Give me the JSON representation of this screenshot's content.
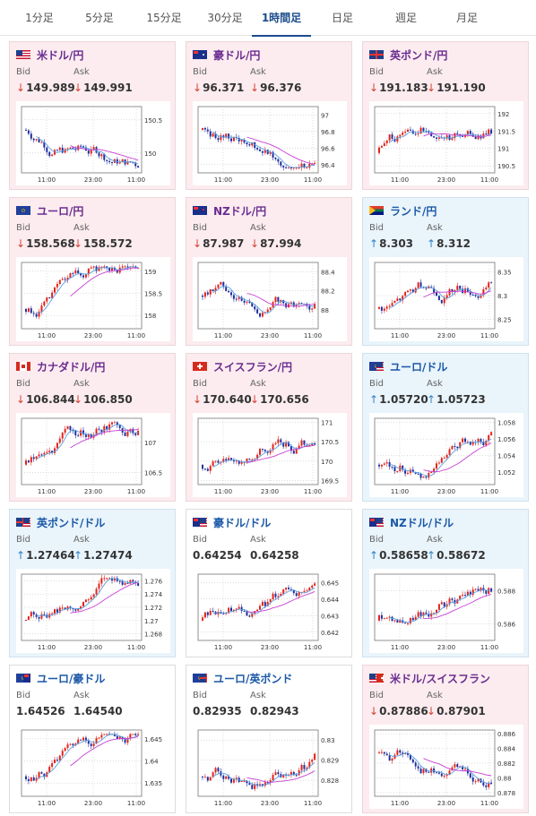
{
  "tabs": [
    {
      "label": "1分足",
      "active": false
    },
    {
      "label": "5分足",
      "active": false
    },
    {
      "label": "15分足",
      "active": false
    },
    {
      "label": "30分足",
      "active": false
    },
    {
      "label": "1時間足",
      "active": true
    },
    {
      "label": "日足",
      "active": false
    },
    {
      "label": "週足",
      "active": false
    },
    {
      "label": "月足",
      "active": false
    }
  ],
  "labels": {
    "bid": "Bid",
    "ask": "Ask"
  },
  "colors": {
    "bull": "#e2231a",
    "bear": "#1f2f9e",
    "ma_short": "#5aa0e0",
    "ma_long": "#c840d4",
    "down_card": "#fcecef",
    "up_card": "#e9f4fb",
    "flat_card": "#ffffff"
  },
  "cards": [
    {
      "pair": "米ドル/円",
      "flag": "us",
      "dir": "down",
      "bid": "149.989",
      "ask": "149.991",
      "chart_data": {
        "type": "candlestick",
        "x_ticks": [
          "11:00",
          "23:00",
          "11:00"
        ],
        "y_ticks": [
          "150.5",
          "150"
        ],
        "ylim": [
          149.7,
          150.7
        ],
        "trend": "down"
      }
    },
    {
      "pair": "豪ドル/円",
      "flag": "au",
      "dir": "down",
      "bid": "96.371",
      "ask": "96.376",
      "chart_data": {
        "type": "candlestick",
        "x_ticks": [
          "11:00",
          "23:00",
          "11:00"
        ],
        "y_ticks": [
          "97",
          "96.8",
          "96.6",
          "96.4"
        ],
        "ylim": [
          96.3,
          97.1
        ],
        "trend": "down"
      }
    },
    {
      "pair": "英ポンド/円",
      "flag": "gb",
      "dir": "down",
      "bid": "191.183",
      "ask": "191.190",
      "chart_data": {
        "type": "candlestick",
        "x_ticks": [
          "11:00",
          "23:00",
          "11:00"
        ],
        "y_ticks": [
          "192",
          "191.5",
          "191",
          "190.5"
        ],
        "ylim": [
          190.3,
          192.2
        ],
        "trend": "up"
      }
    },
    {
      "pair": "ユーロ/円",
      "flag": "eu",
      "dir": "down",
      "bid": "158.568",
      "ask": "158.572",
      "chart_data": {
        "type": "candlestick",
        "x_ticks": [
          "11:00",
          "23:00",
          "11:00"
        ],
        "y_ticks": [
          "159",
          "158.5",
          "158"
        ],
        "ylim": [
          157.7,
          159.2
        ],
        "trend": "up"
      }
    },
    {
      "pair": "NZドル/円",
      "flag": "nz",
      "dir": "down",
      "bid": "87.987",
      "ask": "87.994",
      "chart_data": {
        "type": "candlestick",
        "x_ticks": [
          "11:00",
          "23:00",
          "11:00"
        ],
        "y_ticks": [
          "88.4",
          "88.2",
          "88"
        ],
        "ylim": [
          87.8,
          88.5
        ],
        "trend": "flat"
      }
    },
    {
      "pair": "ランド/円",
      "flag": "za",
      "dir": "up",
      "bid": "8.303",
      "ask": "8.312",
      "chart_data": {
        "type": "candlestick",
        "x_ticks": [
          "11:00",
          "23:00",
          "11:00"
        ],
        "y_ticks": [
          "8.35",
          "8.3",
          "8.25"
        ],
        "ylim": [
          8.23,
          8.37
        ],
        "trend": "up"
      }
    },
    {
      "pair": "カナダドル/円",
      "flag": "ca",
      "dir": "down",
      "bid": "106.844",
      "ask": "106.850",
      "chart_data": {
        "type": "candlestick",
        "x_ticks": [
          "11:00",
          "23:00",
          "11:00"
        ],
        "y_ticks": [
          "107",
          "106.5"
        ],
        "ylim": [
          106.3,
          107.4
        ],
        "trend": "up"
      }
    },
    {
      "pair": "スイスフラン/円",
      "flag": "ch",
      "dir": "down",
      "bid": "170.640",
      "ask": "170.656",
      "chart_data": {
        "type": "candlestick",
        "x_ticks": [
          "11:00",
          "23:00",
          "11:00"
        ],
        "y_ticks": [
          "171",
          "170.5",
          "170",
          "169.5"
        ],
        "ylim": [
          169.4,
          171.1
        ],
        "trend": "up"
      }
    },
    {
      "pair": "ユーロ/ドル",
      "flag": "euus",
      "dir": "up",
      "bid": "1.05720",
      "ask": "1.05723",
      "chart_data": {
        "type": "candlestick",
        "x_ticks": [
          "11:00",
          "23:00",
          "11:00"
        ],
        "y_ticks": [
          "1.058",
          "1.056",
          "1.054",
          "1.052"
        ],
        "ylim": [
          1.0505,
          1.0585
        ],
        "trend": "up"
      }
    },
    {
      "pair": "英ポンド/ドル",
      "flag": "gbus",
      "dir": "up",
      "bid": "1.27464",
      "ask": "1.27474",
      "chart_data": {
        "type": "candlestick",
        "x_ticks": [
          "11:00",
          "23:00",
          "11:00"
        ],
        "y_ticks": [
          "1.276",
          "1.274",
          "1.272",
          "1.27",
          "1.268"
        ],
        "ylim": [
          1.267,
          1.277
        ],
        "trend": "up"
      }
    },
    {
      "pair": "豪ドル/ドル",
      "flag": "auus",
      "dir": "flat",
      "bid": "0.64254",
      "ask": "0.64258",
      "chart_data": {
        "type": "candlestick",
        "x_ticks": [
          "11:00",
          "23:00",
          "11:00"
        ],
        "y_ticks": [
          "0.645",
          "0.644",
          "0.643",
          "0.642"
        ],
        "ylim": [
          0.6415,
          0.6455
        ],
        "trend": "up"
      }
    },
    {
      "pair": "NZドル/ドル",
      "flag": "nzus",
      "dir": "up",
      "bid": "0.58658",
      "ask": "0.58672",
      "chart_data": {
        "type": "candlestick",
        "x_ticks": [
          "11:00",
          "23:00",
          "11:00"
        ],
        "y_ticks": [
          "0.588",
          "0.586"
        ],
        "ylim": [
          0.585,
          0.589
        ],
        "trend": "up"
      }
    },
    {
      "pair": "ユーロ/豪ドル",
      "flag": "euau",
      "dir": "flat",
      "bid": "1.64526",
      "ask": "1.64540",
      "chart_data": {
        "type": "candlestick",
        "x_ticks": [
          "11:00",
          "23:00",
          "11:00"
        ],
        "y_ticks": [
          "1.645",
          "1.64",
          "1.635"
        ],
        "ylim": [
          1.632,
          1.647
        ],
        "trend": "up"
      }
    },
    {
      "pair": "ユーロ/英ポンド",
      "flag": "eugb",
      "dir": "flat",
      "bid": "0.82935",
      "ask": "0.82943",
      "chart_data": {
        "type": "candlestick",
        "x_ticks": [
          "11:00",
          "23:00",
          "11:00"
        ],
        "y_ticks": [
          "0.83",
          "0.829",
          "0.828"
        ],
        "ylim": [
          0.8272,
          0.8305
        ],
        "trend": "up"
      }
    },
    {
      "pair": "米ドル/スイスフラン",
      "flag": "usch",
      "dir": "down",
      "bid": "0.87886",
      "ask": "0.87901",
      "chart_data": {
        "type": "candlestick",
        "x_ticks": [
          "11:00",
          "23:00",
          "11:00"
        ],
        "y_ticks": [
          "0.886",
          "0.884",
          "0.882",
          "0.88",
          "0.878"
        ],
        "ylim": [
          0.8775,
          0.8865
        ],
        "trend": "down"
      }
    }
  ]
}
